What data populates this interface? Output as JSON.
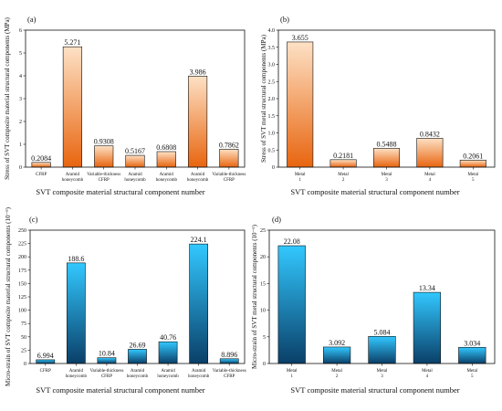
{
  "colors": {
    "orange_top": "#fde1c5",
    "orange_bottom": "#e8650f",
    "blue_top": "#32c8ff",
    "blue_bottom": "#0a3f68",
    "frame": "#111111"
  },
  "chart_data": [
    {
      "panel": "(a)",
      "type": "bar",
      "gradient": "orange",
      "categories": [
        "CFRP",
        "Aramid honeycomb",
        "Variable-thickness CFRP",
        "Aramid honeycomb",
        "Aramid honeycomb",
        "Aramid honeycomb",
        "Variable-thickness CFRP"
      ],
      "values": [
        0.2084,
        5.271,
        0.9308,
        0.5167,
        0.6808,
        3.986,
        0.7862
      ],
      "value_labels": [
        "0.2084",
        "5.271",
        "0.9308",
        "0.5167",
        "0.6808",
        "3.986",
        "0.7862"
      ],
      "xlabel": "SVT composite material structural component number",
      "ylabel": "Stress of SVT composite material structural components (MPa)",
      "ylim": [
        0,
        6
      ],
      "yticks": [
        0,
        1,
        2,
        3,
        4,
        5,
        6
      ],
      "ytick_labels": [
        "0",
        "1",
        "2",
        "3",
        "4",
        "5",
        "6"
      ],
      "grid": false
    },
    {
      "panel": "(b)",
      "type": "bar",
      "gradient": "orange",
      "categories": [
        "Metal 1",
        "Metal 2",
        "Metal 3",
        "Metal 4",
        "Metal 5"
      ],
      "values": [
        3.655,
        0.2181,
        0.5488,
        0.8432,
        0.2061
      ],
      "value_labels": [
        "3.655",
        "0.2181",
        "0.5488",
        "0.8432",
        "0.2061"
      ],
      "xlabel": "SVT composite material structural component number",
      "ylabel": "Stress of SVT metal structural components (MPa)",
      "ylim": [
        0,
        4
      ],
      "yticks": [
        0,
        0.5,
        1,
        1.5,
        2,
        2.5,
        3,
        3.5,
        4
      ],
      "ytick_labels": [
        "0",
        "0.5",
        "1.0",
        "1.5",
        "2.0",
        "2.5",
        "3.0",
        "3.5",
        "4.0"
      ],
      "grid": false
    },
    {
      "panel": "(c)",
      "type": "bar",
      "gradient": "blue",
      "categories": [
        "CFRP",
        "Aramid honeycomb",
        "Variable-thickness CFRP",
        "Aramid honeycomb",
        "Aramid honeycomb",
        "Aramid honeycomb",
        "Variable-thickness CFRP"
      ],
      "values": [
        6.994,
        188.6,
        10.84,
        26.69,
        40.76,
        224.1,
        8.896
      ],
      "value_labels": [
        "6.994",
        "188.6",
        "10.84",
        "26.69",
        "40.76",
        "224.1",
        "8.896"
      ],
      "xlabel": "SVT composite material structural component number",
      "ylabel": "Micro-strain of SVT composite material structural components (10⁻⁶)",
      "ylim": [
        0,
        250
      ],
      "yticks": [
        0,
        25,
        50,
        75,
        100,
        125,
        150,
        175,
        200,
        225,
        250
      ],
      "ytick_labels": [
        "0",
        "25",
        "50",
        "75",
        "100",
        "125",
        "150",
        "175",
        "200",
        "225",
        "250"
      ],
      "grid": false
    },
    {
      "panel": "(d)",
      "type": "bar",
      "gradient": "blue",
      "categories": [
        "Metal 1",
        "Metal 2",
        "Metal 3",
        "Metal 4",
        "Metal 5"
      ],
      "values": [
        22.08,
        3.092,
        5.084,
        13.34,
        3.034
      ],
      "value_labels": [
        "22.08",
        "3.092",
        "5.084",
        "13.34",
        "3.034"
      ],
      "xlabel": "SVT composite material structural component number",
      "ylabel": "Micro-strain of SVT metal structural components (10⁻⁶)",
      "ylim": [
        0,
        25
      ],
      "yticks": [
        0,
        5,
        10,
        15,
        20,
        25
      ],
      "ytick_labels": [
        "0",
        "5",
        "10",
        "15",
        "20",
        "25"
      ],
      "grid": false
    }
  ]
}
